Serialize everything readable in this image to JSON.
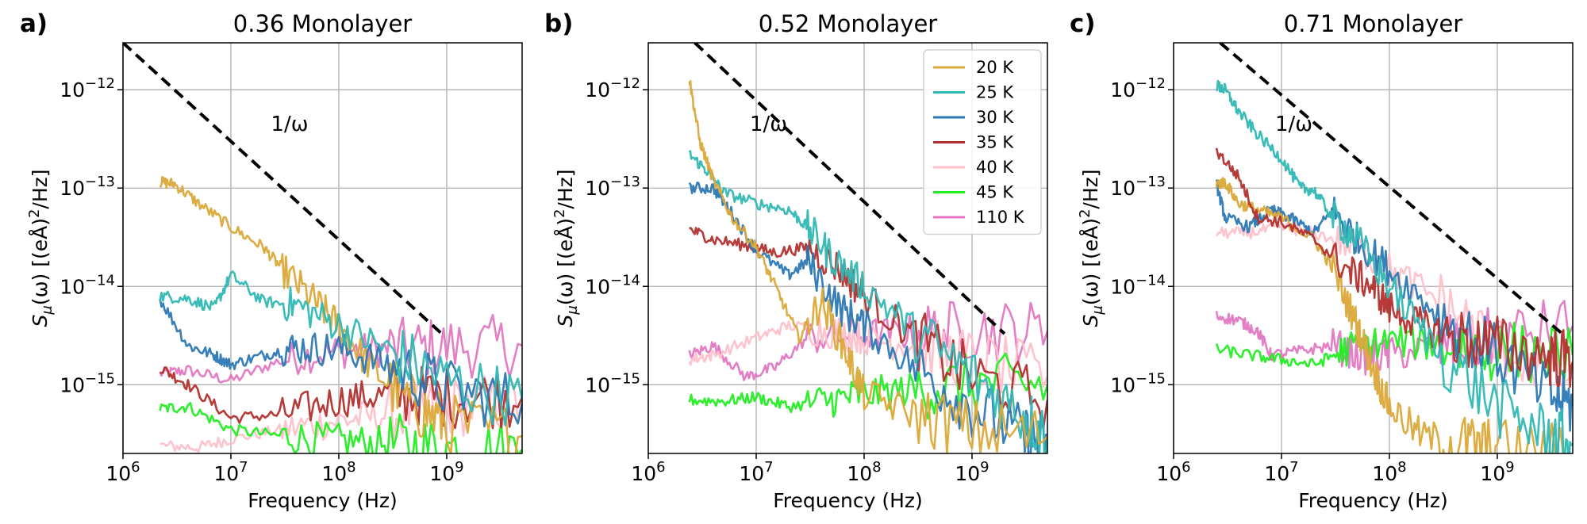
{
  "figure": {
    "panels": [
      {
        "label": "a)",
        "title": "0.36 Monolayer"
      },
      {
        "label": "b)",
        "title": "0.52 Monolayer"
      },
      {
        "label": "c)",
        "title": "0.71 Monolayer"
      }
    ],
    "xlabel": "Frequency (Hz)",
    "ylabel_main": "S",
    "ylabel_sub": "μ",
    "ylabel_rest": "(ω) [(eÅ)",
    "ylabel_sup": "2",
    "ylabel_end": "/Hz]",
    "x_tick_base": "10",
    "y_tick_base": "10",
    "annotation": "1/ω"
  },
  "chart_data": [
    {
      "type": "line",
      "title": "0.36 Monolayer",
      "xlabel": "Frequency (Hz)",
      "ylabel": "S_μ(ω) [(eÅ)^2/Hz]",
      "xscale": "log",
      "yscale": "log",
      "xlim": [
        1000000.0,
        5000000000.0
      ],
      "ylim": [
        2e-16,
        3e-12
      ],
      "xticks": [
        {
          "value": 1000000.0,
          "exp": "6"
        },
        {
          "value": 10000000.0,
          "exp": "7"
        },
        {
          "value": 100000000.0,
          "exp": "8"
        },
        {
          "value": 1000000000.0,
          "exp": "9"
        }
      ],
      "yticks": [
        {
          "value": 1e-15,
          "exp": "−15"
        },
        {
          "value": 1e-14,
          "exp": "−14"
        },
        {
          "value": 1e-13,
          "exp": "−13"
        },
        {
          "value": 1e-12,
          "exp": "−12"
        }
      ],
      "grid": true,
      "reference_line": {
        "label": "1/ω",
        "x": [
          1000000.0,
          900000000.0
        ],
        "y": [
          3e-12,
          3.3e-15
        ],
        "label_x": 35000000.0,
        "label_y": 4.5e-13
      },
      "series": [
        {
          "name": "110 K",
          "color": "#e377c2",
          "x": [
            2200000.0,
            4000000.0,
            10000000.0,
            30000000.0,
            100000000.0,
            300000000.0,
            1000000000.0,
            5000000000.0
          ],
          "y": [
            1.3e-15,
            1.4e-15,
            1.1e-15,
            1.8e-15,
            2.2e-15,
            2.3e-15,
            2.4e-15,
            2.5e-15
          ]
        },
        {
          "name": "40 K",
          "color": "#ffc0cb",
          "x": [
            2200000.0,
            5000000.0,
            10000000.0,
            30000000.0,
            100000000.0,
            300000000.0,
            1000000000.0,
            5000000000.0
          ],
          "y": [
            2.4e-16,
            2.3e-16,
            2.8e-16,
            3.5e-16,
            4.3e-16,
            5e-16,
            6e-16,
            6.5e-16
          ]
        },
        {
          "name": "45 K",
          "color": "#22ee22",
          "x": [
            2200000.0,
            4000000.0,
            10000000.0,
            30000000.0,
            100000000.0,
            300000000.0,
            1000000000.0,
            5000000000.0
          ],
          "y": [
            5.7e-16,
            6e-16,
            3.5e-16,
            3e-16,
            2.7e-16,
            2.5e-16,
            2.3e-16,
            2.2e-16
          ]
        },
        {
          "name": "35 K",
          "color": "#b2302e",
          "x": [
            2200000.0,
            4000000.0,
            10000000.0,
            30000000.0,
            100000000.0,
            300000000.0,
            1000000000.0,
            5000000000.0
          ],
          "y": [
            1.5e-15,
            1e-15,
            4.6e-16,
            5e-16,
            7e-16,
            8e-16,
            7.5e-16,
            7.5e-16
          ]
        },
        {
          "name": "20 K",
          "color": "#dba93a",
          "x": [
            2200000.0,
            3000000.0,
            5000000.0,
            10000000.0,
            20000000.0,
            30000000.0,
            60000000.0,
            100000000.0,
            200000000.0,
            500000000.0,
            1000000000.0,
            5000000000.0
          ],
          "y": [
            1.15e-13,
            1.1e-13,
            7e-14,
            4e-14,
            2.5e-14,
            1.5e-14,
            7e-15,
            4e-15,
            1.5e-15,
            6e-16,
            4e-16,
            3e-16
          ]
        },
        {
          "name": "30 K",
          "color": "#2c78b4",
          "x": [
            2200000.0,
            4000000.0,
            7000000.0,
            10000000.0,
            20000000.0,
            40000000.0,
            100000000.0,
            300000000.0,
            1000000000.0,
            5000000000.0
          ],
          "y": [
            7.5e-15,
            2.5e-15,
            2e-15,
            1.6e-15,
            2e-15,
            2.4e-15,
            2.3e-15,
            1.6e-15,
            9e-16,
            6.5e-16
          ]
        },
        {
          "name": "25 K",
          "color": "#32b8b4",
          "x": [
            2200000.0,
            4000000.0,
            7000000.0,
            10000000.0,
            20000000.0,
            40000000.0,
            100000000.0,
            300000000.0,
            1000000000.0,
            5000000000.0
          ],
          "y": [
            8e-15,
            7.5e-15,
            6e-15,
            1.3e-14,
            7e-15,
            6.5e-15,
            4e-15,
            2.2e-15,
            1.1e-15,
            7e-16
          ]
        }
      ]
    },
    {
      "type": "line",
      "title": "0.52 Monolayer",
      "xlabel": "Frequency (Hz)",
      "ylabel": "S_μ(ω) [(eÅ)^2/Hz]",
      "xscale": "log",
      "yscale": "log",
      "xlim": [
        1000000.0,
        5000000000.0
      ],
      "ylim": [
        2e-16,
        3e-12
      ],
      "xticks": [
        {
          "value": 1000000.0,
          "exp": "6"
        },
        {
          "value": 10000000.0,
          "exp": "7"
        },
        {
          "value": 100000000.0,
          "exp": "8"
        },
        {
          "value": 1000000000.0,
          "exp": "9"
        }
      ],
      "yticks": [
        {
          "value": 1e-15,
          "exp": "−15"
        },
        {
          "value": 1e-14,
          "exp": "−14"
        },
        {
          "value": 1e-13,
          "exp": "−13"
        },
        {
          "value": 1e-12,
          "exp": "−12"
        }
      ],
      "grid": true,
      "reference_line": {
        "label": "1/ω",
        "x": [
          2700000.0,
          2000000000.0
        ],
        "y": [
          3e-12,
          3.3e-15
        ],
        "label_x": 13000000.0,
        "label_y": 4.5e-13
      },
      "legend": {
        "location": "top-right",
        "entries": [
          "20 K",
          "25 K",
          "30 K",
          "35 K",
          "40 K",
          "45 K",
          "110 K"
        ]
      },
      "series": [
        {
          "name": "110 K",
          "color": "#e377c2",
          "x": [
            2400000.0,
            4000000.0,
            8000000.0,
            15000000.0,
            30000000.0,
            100000000.0,
            300000000.0,
            1000000000.0,
            5000000000.0
          ],
          "y": [
            2e-15,
            2.5e-15,
            1.2e-15,
            1.5e-15,
            3e-15,
            3.2e-15,
            3.4e-15,
            3.6e-15,
            3.5e-15
          ]
        },
        {
          "name": "40 K",
          "color": "#ffc0cb",
          "x": [
            2400000.0,
            4000000.0,
            10000000.0,
            20000000.0,
            50000000.0,
            100000000.0,
            300000000.0,
            1000000000.0,
            5000000000.0
          ],
          "y": [
            1.8e-15,
            2e-15,
            3e-15,
            4e-15,
            3.5e-15,
            3e-15,
            2.5e-15,
            1.8e-15,
            1.2e-15
          ]
        },
        {
          "name": "45 K",
          "color": "#22ee22",
          "x": [
            2400000.0,
            5000000.0,
            10000000.0,
            20000000.0,
            50000000.0,
            100000000.0,
            300000000.0,
            1000000000.0,
            5000000000.0
          ],
          "y": [
            7e-16,
            6.8e-16,
            7.5e-16,
            6e-16,
            7e-16,
            8e-16,
            9e-16,
            1e-15,
            1e-15
          ]
        },
        {
          "name": "35 K",
          "color": "#b2302e",
          "x": [
            2400000.0,
            4000000.0,
            8000000.0,
            15000000.0,
            30000000.0,
            60000000.0,
            100000000.0,
            300000000.0,
            1000000000.0,
            5000000000.0
          ],
          "y": [
            3.8e-14,
            3e-14,
            2.6e-14,
            2.2e-14,
            2.5e-14,
            1.5e-14,
            8e-15,
            3e-15,
            1.2e-15,
            7e-16
          ]
        },
        {
          "name": "30 K",
          "color": "#2c78b4",
          "x": [
            2400000.0,
            4000000.0,
            6000000.0,
            10000000.0,
            20000000.0,
            30000000.0,
            60000000.0,
            100000000.0,
            300000000.0,
            1000000000.0,
            3000000000.0,
            5000000000.0
          ],
          "y": [
            1e-13,
            1e-13,
            5.5e-14,
            2.3e-14,
            1.3e-14,
            1.8e-14,
            6e-15,
            4e-15,
            1.5e-15,
            6e-16,
            3e-16,
            2.4e-16
          ]
        },
        {
          "name": "25 K",
          "color": "#32b8b4",
          "x": [
            2400000.0,
            3500000.0,
            5000000.0,
            10000000.0,
            20000000.0,
            30000000.0,
            50000000.0,
            100000000.0,
            300000000.0,
            1000000000.0,
            3000000000.0,
            5000000000.0
          ],
          "y": [
            2.2e-13,
            1.5e-13,
            9e-14,
            7e-14,
            6e-14,
            4e-14,
            2e-14,
            1e-14,
            3.5e-15,
            1.2e-15,
            5e-16,
            3e-16
          ]
        },
        {
          "name": "20 K",
          "color": "#dba93a",
          "x": [
            2400000.0,
            3000000.0,
            4000000.0,
            6000000.0,
            10000000.0,
            15000000.0,
            25000000.0,
            40000000.0,
            70000000.0,
            100000000.0,
            300000000.0,
            1000000000.0,
            5000000000.0
          ],
          "y": [
            1.3e-12,
            3e-13,
            1.2e-13,
            5e-14,
            2.5e-14,
            1e-14,
            3e-15,
            7e-15,
            2e-15,
            8e-16,
            5e-16,
            3.5e-16,
            3e-16
          ]
        }
      ]
    },
    {
      "type": "line",
      "title": "0.71 Monolayer",
      "xlabel": "Frequency (Hz)",
      "ylabel": "S_μ(ω) [(eÅ)^2/Hz]",
      "xscale": "log",
      "yscale": "log",
      "xlim": [
        1000000.0,
        5000000000.0
      ],
      "ylim": [
        2e-16,
        3e-12
      ],
      "xticks": [
        {
          "value": 1000000.0,
          "exp": "6"
        },
        {
          "value": 10000000.0,
          "exp": "7"
        },
        {
          "value": 100000000.0,
          "exp": "8"
        },
        {
          "value": 1000000000.0,
          "exp": "9"
        }
      ],
      "yticks": [
        {
          "value": 1e-15,
          "exp": "−15"
        },
        {
          "value": 1e-14,
          "exp": "−14"
        },
        {
          "value": 1e-13,
          "exp": "−13"
        },
        {
          "value": 1e-12,
          "exp": "−12"
        }
      ],
      "grid": true,
      "reference_line": {
        "label": "1/ω",
        "x": [
          2700000.0,
          4000000000.0
        ],
        "y": [
          3e-12,
          3.3e-15
        ],
        "label_x": 13000000.0,
        "label_y": 4.5e-13
      },
      "series": [
        {
          "name": "110 K",
          "color": "#e377c2",
          "x": [
            2500000.0,
            4000000.0,
            6000000.0,
            8000000.0,
            15000000.0,
            30000000.0,
            60000000.0,
            100000000.0,
            300000000.0,
            1000000000.0,
            5000000000.0
          ],
          "y": [
            5e-15,
            4.5e-15,
            3.5e-15,
            2e-15,
            2.2e-15,
            2.5e-15,
            1.9e-15,
            2e-15,
            2.5e-15,
            3e-15,
            4e-15
          ]
        },
        {
          "name": "40 K",
          "color": "#ffc0cb",
          "x": [
            2500000.0,
            5000000.0,
            10000000.0,
            20000000.0,
            50000000.0,
            100000000.0,
            300000000.0,
            1000000000.0,
            5000000000.0
          ],
          "y": [
            3.5e-14,
            3.5e-14,
            4e-14,
            3.5e-14,
            2.5e-14,
            1.5e-14,
            7e-15,
            2.5e-15,
            1.2e-15
          ]
        },
        {
          "name": "45 K",
          "color": "#22ee22",
          "x": [
            2500000.0,
            5000000.0,
            10000000.0,
            20000000.0,
            40000000.0,
            100000000.0,
            300000000.0,
            1000000000.0,
            5000000000.0
          ],
          "y": [
            2.3e-15,
            2e-15,
            1.8e-15,
            1.6e-15,
            2.3e-15,
            2.8e-15,
            2.6e-15,
            2.2e-15,
            2e-15
          ]
        },
        {
          "name": "30 K",
          "color": "#2c78b4",
          "x": [
            2500000.0,
            3000000.0,
            5000000.0,
            8000000.0,
            12000000.0,
            20000000.0,
            30000000.0,
            50000000.0,
            100000000.0,
            300000000.0,
            1000000000.0,
            3000000000.0,
            5000000000.0
          ],
          "y": [
            1.1e-13,
            5e-14,
            4e-14,
            6e-14,
            5e-14,
            3.5e-14,
            6e-14,
            3e-14,
            1.5e-14,
            5e-15,
            2e-15,
            8e-16,
            6e-16
          ]
        },
        {
          "name": "20 K",
          "color": "#dba93a",
          "x": [
            2500000.0,
            3000000.0,
            4000000.0,
            6000000.0,
            10000000.0,
            20000000.0,
            30000000.0,
            50000000.0,
            70000000.0,
            100000000.0,
            200000000.0,
            500000000.0,
            1000000000.0,
            5000000000.0
          ],
          "y": [
            1.1e-13,
            1.15e-13,
            7e-14,
            6e-14,
            5e-14,
            3e-14,
            1.5e-14,
            4e-15,
            1.5e-15,
            6e-16,
            3e-16,
            2.5e-16,
            2.2e-16,
            2e-16
          ]
        },
        {
          "name": "35 K",
          "color": "#b2302e",
          "x": [
            2500000.0,
            4000000.0,
            6000000.0,
            10000000.0,
            20000000.0,
            40000000.0,
            70000000.0,
            100000000.0,
            200000000.0,
            400000000.0,
            1000000000.0,
            3000000000.0,
            5000000000.0
          ],
          "y": [
            2.4e-13,
            1.3e-13,
            5e-14,
            4.5e-14,
            3e-14,
            1.5e-14,
            1e-14,
            6e-15,
            4e-15,
            3e-15,
            2.5e-15,
            2e-15,
            1.7e-15
          ]
        },
        {
          "name": "25 K",
          "color": "#32b8b4",
          "x": [
            2500000.0,
            3000000.0,
            4000000.0,
            6000000.0,
            10000000.0,
            15000000.0,
            20000000.0,
            30000000.0,
            50000000.0,
            100000000.0,
            300000000.0,
            1000000000.0,
            3000000000.0,
            5000000000.0
          ],
          "y": [
            1.1e-12,
            1e-12,
            6e-13,
            3.5e-13,
            2e-13,
            1e-13,
            9.5e-14,
            5e-14,
            3e-14,
            1e-14,
            2e-15,
            6e-16,
            3e-16,
            2.5e-16
          ]
        }
      ]
    }
  ]
}
